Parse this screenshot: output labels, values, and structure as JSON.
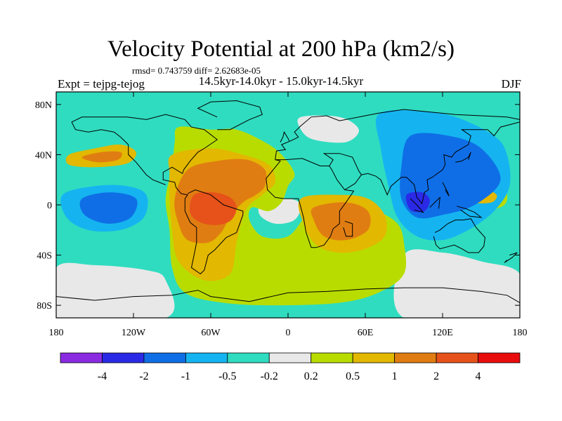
{
  "title": "Velocity Potential at 200 hPa (km2/s)",
  "stats": "rmsd= 0.743759 diff= 2.62683e-05",
  "expt_label": "Expt = tejpg-tejog",
  "period_label": "14.5kyr-14.0kyr - 15.0kyr-14.5kyr",
  "season_label": "DJF",
  "colors": {
    "ocean_bg": "#2fdcc0",
    "coast": "#000000",
    "levels": [
      "#8a2be2",
      "#2a2ae6",
      "#0f6ee6",
      "#15b4f0",
      "#2fdcc0",
      "#e8e8e8",
      "#b9dc00",
      "#e2b800",
      "#e07d12",
      "#e6521a",
      "#e80c0c"
    ]
  },
  "chart_data": {
    "type": "map-contour",
    "title": "Velocity Potential at 200 hPa (km2/s)",
    "projection": "cylindrical-equidistant",
    "lon_range": [
      -180,
      180
    ],
    "lat_range": [
      -90,
      90
    ],
    "x_ticks": [
      {
        "value": -180,
        "label": "180"
      },
      {
        "value": -120,
        "label": "120W"
      },
      {
        "value": -60,
        "label": "60W"
      },
      {
        "value": 0,
        "label": "0"
      },
      {
        "value": 60,
        "label": "60E"
      },
      {
        "value": 120,
        "label": "120E"
      },
      {
        "value": 180,
        "label": "180"
      }
    ],
    "y_ticks": [
      {
        "value": 80,
        "label": "80N"
      },
      {
        "value": 40,
        "label": "40N"
      },
      {
        "value": 0,
        "label": "0"
      },
      {
        "value": -40,
        "label": "40S"
      },
      {
        "value": -80,
        "label": "80S"
      }
    ],
    "colorbar": {
      "labels": [
        "-4",
        "-2",
        "-1",
        "-0.5",
        "-0.2",
        "0.2",
        "0.5",
        "1",
        "2",
        "4"
      ],
      "n_bins": 11
    },
    "regions": [
      {
        "name": "north-america-atlantic-positive-band",
        "level": 6,
        "points": [
          [
            -85,
            62
          ],
          [
            -60,
            60
          ],
          [
            -40,
            60
          ],
          [
            -18,
            50
          ],
          [
            -5,
            40
          ],
          [
            5,
            25
          ],
          [
            0,
            15
          ],
          [
            -5,
            2
          ],
          [
            -15,
            -5
          ],
          [
            -28,
            -2
          ],
          [
            -30,
            -12
          ],
          [
            -20,
            -25
          ],
          [
            0,
            -25
          ],
          [
            15,
            -8
          ],
          [
            35,
            5
          ],
          [
            55,
            0
          ],
          [
            70,
            -5
          ],
          [
            85,
            -15
          ],
          [
            90,
            -30
          ],
          [
            90,
            -55
          ],
          [
            70,
            -70
          ],
          [
            40,
            -78
          ],
          [
            -10,
            -80
          ],
          [
            -50,
            -78
          ],
          [
            -80,
            -70
          ],
          [
            -90,
            -50
          ],
          [
            -92,
            -20
          ],
          [
            -95,
            5
          ],
          [
            -90,
            30
          ],
          [
            -88,
            50
          ]
        ]
      },
      {
        "name": "americas-south-positive-core",
        "level": 7,
        "points": [
          [
            -90,
            40
          ],
          [
            -60,
            45
          ],
          [
            -35,
            40
          ],
          [
            -15,
            32
          ],
          [
            -10,
            18
          ],
          [
            -20,
            8
          ],
          [
            -30,
            0
          ],
          [
            -35,
            -10
          ],
          [
            -40,
            -30
          ],
          [
            -45,
            -55
          ],
          [
            -65,
            -60
          ],
          [
            -85,
            -45
          ],
          [
            -90,
            -20
          ],
          [
            -92,
            5
          ],
          [
            -92,
            25
          ]
        ]
      },
      {
        "name": "americas-south-orange-core",
        "level": 8,
        "points": [
          [
            -78,
            28
          ],
          [
            -55,
            35
          ],
          [
            -32,
            36
          ],
          [
            -18,
            28
          ],
          [
            -18,
            15
          ],
          [
            -25,
            8
          ],
          [
            -35,
            2
          ],
          [
            -45,
            -10
          ],
          [
            -52,
            -22
          ],
          [
            -62,
            -30
          ],
          [
            -78,
            -28
          ],
          [
            -85,
            -15
          ],
          [
            -88,
            5
          ]
        ]
      },
      {
        "name": "amazon-red-core",
        "level": 9,
        "points": [
          [
            -73,
            8
          ],
          [
            -58,
            10
          ],
          [
            -45,
            6
          ],
          [
            -40,
            -2
          ],
          [
            -44,
            -12
          ],
          [
            -55,
            -16
          ],
          [
            -68,
            -14
          ],
          [
            -76,
            -6
          ]
        ]
      },
      {
        "name": "southern-africa-positive",
        "level": 7,
        "points": [
          [
            10,
            5
          ],
          [
            40,
            8
          ],
          [
            62,
            5
          ],
          [
            75,
            -8
          ],
          [
            75,
            -25
          ],
          [
            60,
            -35
          ],
          [
            40,
            -38
          ],
          [
            22,
            -32
          ],
          [
            12,
            -15
          ]
        ]
      },
      {
        "name": "southern-africa-orange",
        "level": 8,
        "points": [
          [
            20,
            -2
          ],
          [
            45,
            2
          ],
          [
            62,
            -5
          ],
          [
            62,
            -20
          ],
          [
            45,
            -28
          ],
          [
            28,
            -25
          ],
          [
            20,
            -12
          ]
        ]
      },
      {
        "name": "north-pacific-positive",
        "level": 7,
        "points": [
          [
            -170,
            40
          ],
          [
            -150,
            45
          ],
          [
            -130,
            48
          ],
          [
            -118,
            42
          ],
          [
            -125,
            33
          ],
          [
            -150,
            30
          ],
          [
            -170,
            32
          ]
        ]
      },
      {
        "name": "north-pacific-orange",
        "level": 8,
        "points": [
          [
            -160,
            38
          ],
          [
            -145,
            42
          ],
          [
            -130,
            42
          ],
          [
            -132,
            36
          ],
          [
            -148,
            34
          ]
        ]
      },
      {
        "name": "east-pacific-negative",
        "level": 3,
        "points": [
          [
            -175,
            8
          ],
          [
            -150,
            15
          ],
          [
            -125,
            15
          ],
          [
            -110,
            8
          ],
          [
            -112,
            -10
          ],
          [
            -130,
            -20
          ],
          [
            -155,
            -20
          ],
          [
            -172,
            -10
          ]
        ]
      },
      {
        "name": "east-pacific-blue-core",
        "level": 2,
        "points": [
          [
            -160,
            5
          ],
          [
            -138,
            10
          ],
          [
            -118,
            5
          ],
          [
            -122,
            -10
          ],
          [
            -140,
            -15
          ],
          [
            -158,
            -8
          ]
        ]
      },
      {
        "name": "asia-negative",
        "level": 3,
        "points": [
          [
            70,
            72
          ],
          [
            100,
            75
          ],
          [
            130,
            70
          ],
          [
            160,
            55
          ],
          [
            170,
            40
          ],
          [
            172,
            15
          ],
          [
            160,
            -5
          ],
          [
            140,
            -20
          ],
          [
            120,
            -28
          ],
          [
            100,
            -25
          ],
          [
            85,
            -10
          ],
          [
            78,
            15
          ],
          [
            72,
            45
          ]
        ]
      },
      {
        "name": "asia-blue-core",
        "level": 2,
        "points": [
          [
            95,
            55
          ],
          [
            125,
            55
          ],
          [
            150,
            45
          ],
          [
            165,
            20
          ],
          [
            145,
            0
          ],
          [
            120,
            -8
          ],
          [
            100,
            -10
          ],
          [
            88,
            5
          ],
          [
            88,
            30
          ]
        ]
      },
      {
        "name": "maritime-darkblue-core",
        "level": 1,
        "points": [
          [
            92,
            8
          ],
          [
            104,
            10
          ],
          [
            110,
            4
          ],
          [
            106,
            -5
          ],
          [
            95,
            -4
          ]
        ]
      },
      {
        "name": "west-pacific-positive",
        "level": 6,
        "points": [
          [
            132,
            15
          ],
          [
            150,
            17
          ],
          [
            168,
            12
          ],
          [
            168,
            0
          ],
          [
            150,
            -5
          ],
          [
            134,
            0
          ]
        ]
      },
      {
        "name": "west-pacific-orange",
        "level": 7,
        "points": [
          [
            138,
            9
          ],
          [
            152,
            12
          ],
          [
            162,
            8
          ],
          [
            158,
            2
          ],
          [
            144,
            2
          ]
        ]
      },
      {
        "name": "tropical-atlantic-neutral",
        "level": 5,
        "points": [
          [
            -20,
            2
          ],
          [
            0,
            5
          ],
          [
            10,
            0
          ],
          [
            5,
            -12
          ],
          [
            -10,
            -15
          ],
          [
            -22,
            -8
          ]
        ]
      },
      {
        "name": "northern-asia-neutral-patch",
        "level": 5,
        "points": [
          [
            10,
            70
          ],
          [
            40,
            70
          ],
          [
            55,
            60
          ],
          [
            45,
            50
          ],
          [
            20,
            52
          ],
          [
            10,
            60
          ]
        ]
      },
      {
        "name": "south-ocean-neutral",
        "level": 5,
        "points": [
          [
            90,
            -40
          ],
          [
            120,
            -38
          ],
          [
            150,
            -45
          ],
          [
            180,
            -55
          ],
          [
            180,
            -90
          ],
          [
            90,
            -90
          ]
        ]
      },
      {
        "name": "south-west-neutral",
        "level": 5,
        "points": [
          [
            -180,
            -50
          ],
          [
            -150,
            -48
          ],
          [
            -110,
            -52
          ],
          [
            -95,
            -60
          ],
          [
            -95,
            -90
          ],
          [
            -180,
            -90
          ]
        ]
      }
    ]
  }
}
